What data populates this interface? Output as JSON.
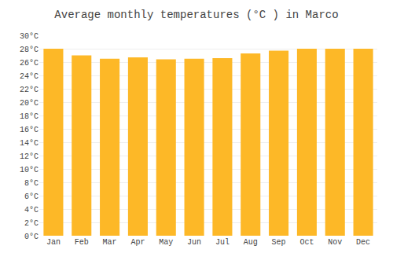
{
  "chart_data": {
    "type": "bar",
    "title": "Average monthly temperatures (°C ) in Marco",
    "categories": [
      "Jan",
      "Feb",
      "Mar",
      "Apr",
      "May",
      "Jun",
      "Jul",
      "Aug",
      "Sep",
      "Oct",
      "Nov",
      "Dec"
    ],
    "values": [
      28.0,
      27.0,
      26.5,
      26.7,
      26.4,
      26.5,
      26.6,
      27.3,
      27.7,
      28.0,
      28.0,
      28.0
    ],
    "color": "#FDB827",
    "ylim": [
      0,
      30
    ],
    "yticks": [
      {
        "value": 0,
        "label": "0°C"
      },
      {
        "value": 2,
        "label": "2°C"
      },
      {
        "value": 4,
        "label": "4°C"
      },
      {
        "value": 6,
        "label": "6°C"
      },
      {
        "value": 8,
        "label": "8°C"
      },
      {
        "value": 10,
        "label": "10°C"
      },
      {
        "value": 12,
        "label": "12°C"
      },
      {
        "value": 14,
        "label": "14°C"
      },
      {
        "value": 16,
        "label": "16°C"
      },
      {
        "value": 18,
        "label": "18°C"
      },
      {
        "value": 20,
        "label": "20°C"
      },
      {
        "value": 22,
        "label": "22°C"
      },
      {
        "value": 24,
        "label": "24°C"
      },
      {
        "value": 26,
        "label": "26°C"
      },
      {
        "value": 28,
        "label": "28°C"
      },
      {
        "value": 30,
        "label": "30°C"
      }
    ],
    "grid": true
  }
}
